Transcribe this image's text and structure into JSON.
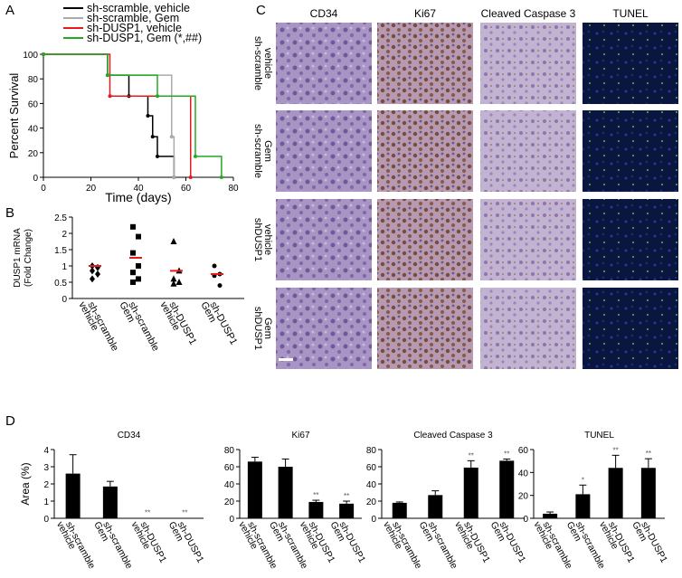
{
  "chart_data": [
    {
      "type": "step",
      "panel": "A",
      "xlabel": "Time (days)",
      "ylabel": "Percent Survival",
      "xlim": [
        0,
        80
      ],
      "xticks": [
        0,
        20,
        40,
        60,
        80
      ],
      "ylim": [
        0,
        100
      ],
      "yticks": [
        0,
        20,
        40,
        60,
        80,
        100
      ],
      "series": [
        {
          "name": "sh-scramble, vehicle",
          "color": "#000000",
          "x": [
            0,
            27,
            36,
            44,
            46,
            48,
            55
          ],
          "values": [
            100,
            83,
            66,
            50,
            33,
            17,
            0
          ]
        },
        {
          "name": "sh-scramble, Gem",
          "color": "#aaaaaa",
          "x": [
            0,
            27,
            54,
            55
          ],
          "values": [
            100,
            83,
            33,
            0
          ]
        },
        {
          "name": "sh-DUSP1, vehicle",
          "color": "#e41a1c",
          "x": [
            0,
            28,
            62
          ],
          "values": [
            100,
            66,
            0
          ]
        },
        {
          "name": "sh-DUSP1, Gem (*,##)",
          "color": "#22aa22",
          "x": [
            0,
            27,
            48,
            64,
            75
          ],
          "values": [
            100,
            83,
            66,
            17,
            0
          ]
        }
      ]
    },
    {
      "type": "dot",
      "panel": "B",
      "ylabel": [
        "DUSP1 mRNA",
        "(Fold Change)"
      ],
      "categories": [
        [
          "sh-scramble",
          "vehicle"
        ],
        [
          "sh-scramble",
          "Gem"
        ],
        [
          "sh-DUSP1",
          "vehicle"
        ],
        [
          "sh-DUSP1",
          "Gem"
        ]
      ],
      "ylim": [
        0,
        2.5
      ],
      "yticks": [
        0,
        0.5,
        1,
        1.5,
        2,
        2.5
      ],
      "markers": [
        "diamond",
        "square",
        "triangle",
        "circle"
      ],
      "points": [
        [
          1.0,
          0.95,
          0.85,
          0.75,
          0.6
        ],
        [
          2.2,
          1.9,
          1.4,
          1.0,
          0.8,
          0.6,
          0.5
        ],
        [
          1.75,
          0.85,
          0.6,
          0.5,
          0.45
        ],
        [
          1.0,
          0.75,
          0.7,
          0.4
        ]
      ],
      "means": [
        1.0,
        1.25,
        0.85,
        0.75
      ],
      "mean_color": "#e41a1c"
    },
    {
      "type": "bar",
      "panel": "D",
      "title": "CD34",
      "ylabel": "Area (%)",
      "categories": [
        [
          "sh-scramble",
          "vehicle"
        ],
        [
          "sh-scramble",
          "Gem"
        ],
        [
          "sh-DUSP1",
          "vehicle"
        ],
        [
          "sh-DUSP1",
          "Gem"
        ]
      ],
      "values": [
        2.6,
        1.85,
        0.02,
        0.02
      ],
      "errors": [
        1.1,
        0.3,
        0,
        0
      ],
      "color": "#000000",
      "annotations": [
        {
          "index": 2,
          "label": "**"
        },
        {
          "index": 3,
          "label": "**"
        }
      ],
      "ylim": [
        0,
        4
      ],
      "yticks": [
        0,
        1,
        2,
        3,
        4
      ]
    },
    {
      "type": "bar",
      "title": "Ki67",
      "categories": [
        [
          "sh-scramble",
          "vehicle"
        ],
        [
          "sh-scramble",
          "Gem"
        ],
        [
          "sh-DUSP1",
          "vehicle"
        ],
        [
          "sh-DUSP1",
          "Gem"
        ]
      ],
      "values": [
        66,
        60,
        19,
        17
      ],
      "errors": [
        5,
        9,
        2,
        3
      ],
      "color": "#000000",
      "annotations": [
        {
          "index": 2,
          "label": "**"
        },
        {
          "index": 3,
          "label": "**"
        }
      ],
      "ylim": [
        0,
        80
      ],
      "yticks": [
        0,
        20,
        40,
        60,
        80
      ]
    },
    {
      "type": "bar",
      "title": "Cleaved Caspase 3",
      "categories": [
        [
          "sh-scramble",
          "vehicle"
        ],
        [
          "sh-scramble",
          "Gem"
        ],
        [
          "sh-DUSP1",
          "vehicle"
        ],
        [
          "sh-DUSP1",
          "Gem"
        ]
      ],
      "values": [
        18,
        27,
        59,
        67
      ],
      "errors": [
        1,
        5,
        8,
        2
      ],
      "color": "#000000",
      "annotations": [
        {
          "index": 2,
          "label": "**"
        },
        {
          "index": 3,
          "label": "**"
        }
      ],
      "ylim": [
        0,
        80
      ],
      "yticks": [
        0,
        20,
        40,
        60,
        80
      ]
    },
    {
      "type": "bar",
      "title": "TUNEL",
      "categories": [
        [
          "sh-scramble",
          "vehicle"
        ],
        [
          "sh-scramble",
          "Gem"
        ],
        [
          "sh-DUSP1",
          "vehicle"
        ],
        [
          "sh-DUSP1",
          "Gem"
        ]
      ],
      "values": [
        4,
        21,
        44,
        44
      ],
      "errors": [
        1.5,
        8,
        11,
        8
      ],
      "color": "#000000",
      "annotations": [
        {
          "index": 1,
          "label": "*"
        },
        {
          "index": 2,
          "label": "**"
        },
        {
          "index": 3,
          "label": "**"
        }
      ],
      "ylim": [
        0,
        60
      ],
      "yticks": [
        0,
        20,
        40,
        60
      ]
    }
  ],
  "micrographs": {
    "panel": "C",
    "columns": [
      "CD34",
      "Ki67",
      "Cleaved Caspase 3",
      "TUNEL"
    ],
    "rows": [
      [
        "sh-scramble",
        "vehicle"
      ],
      [
        "sh-scramble",
        "Gem"
      ],
      [
        "shDUSP1",
        "vehicle"
      ],
      [
        "shDUSP1",
        "Gem"
      ]
    ]
  }
}
